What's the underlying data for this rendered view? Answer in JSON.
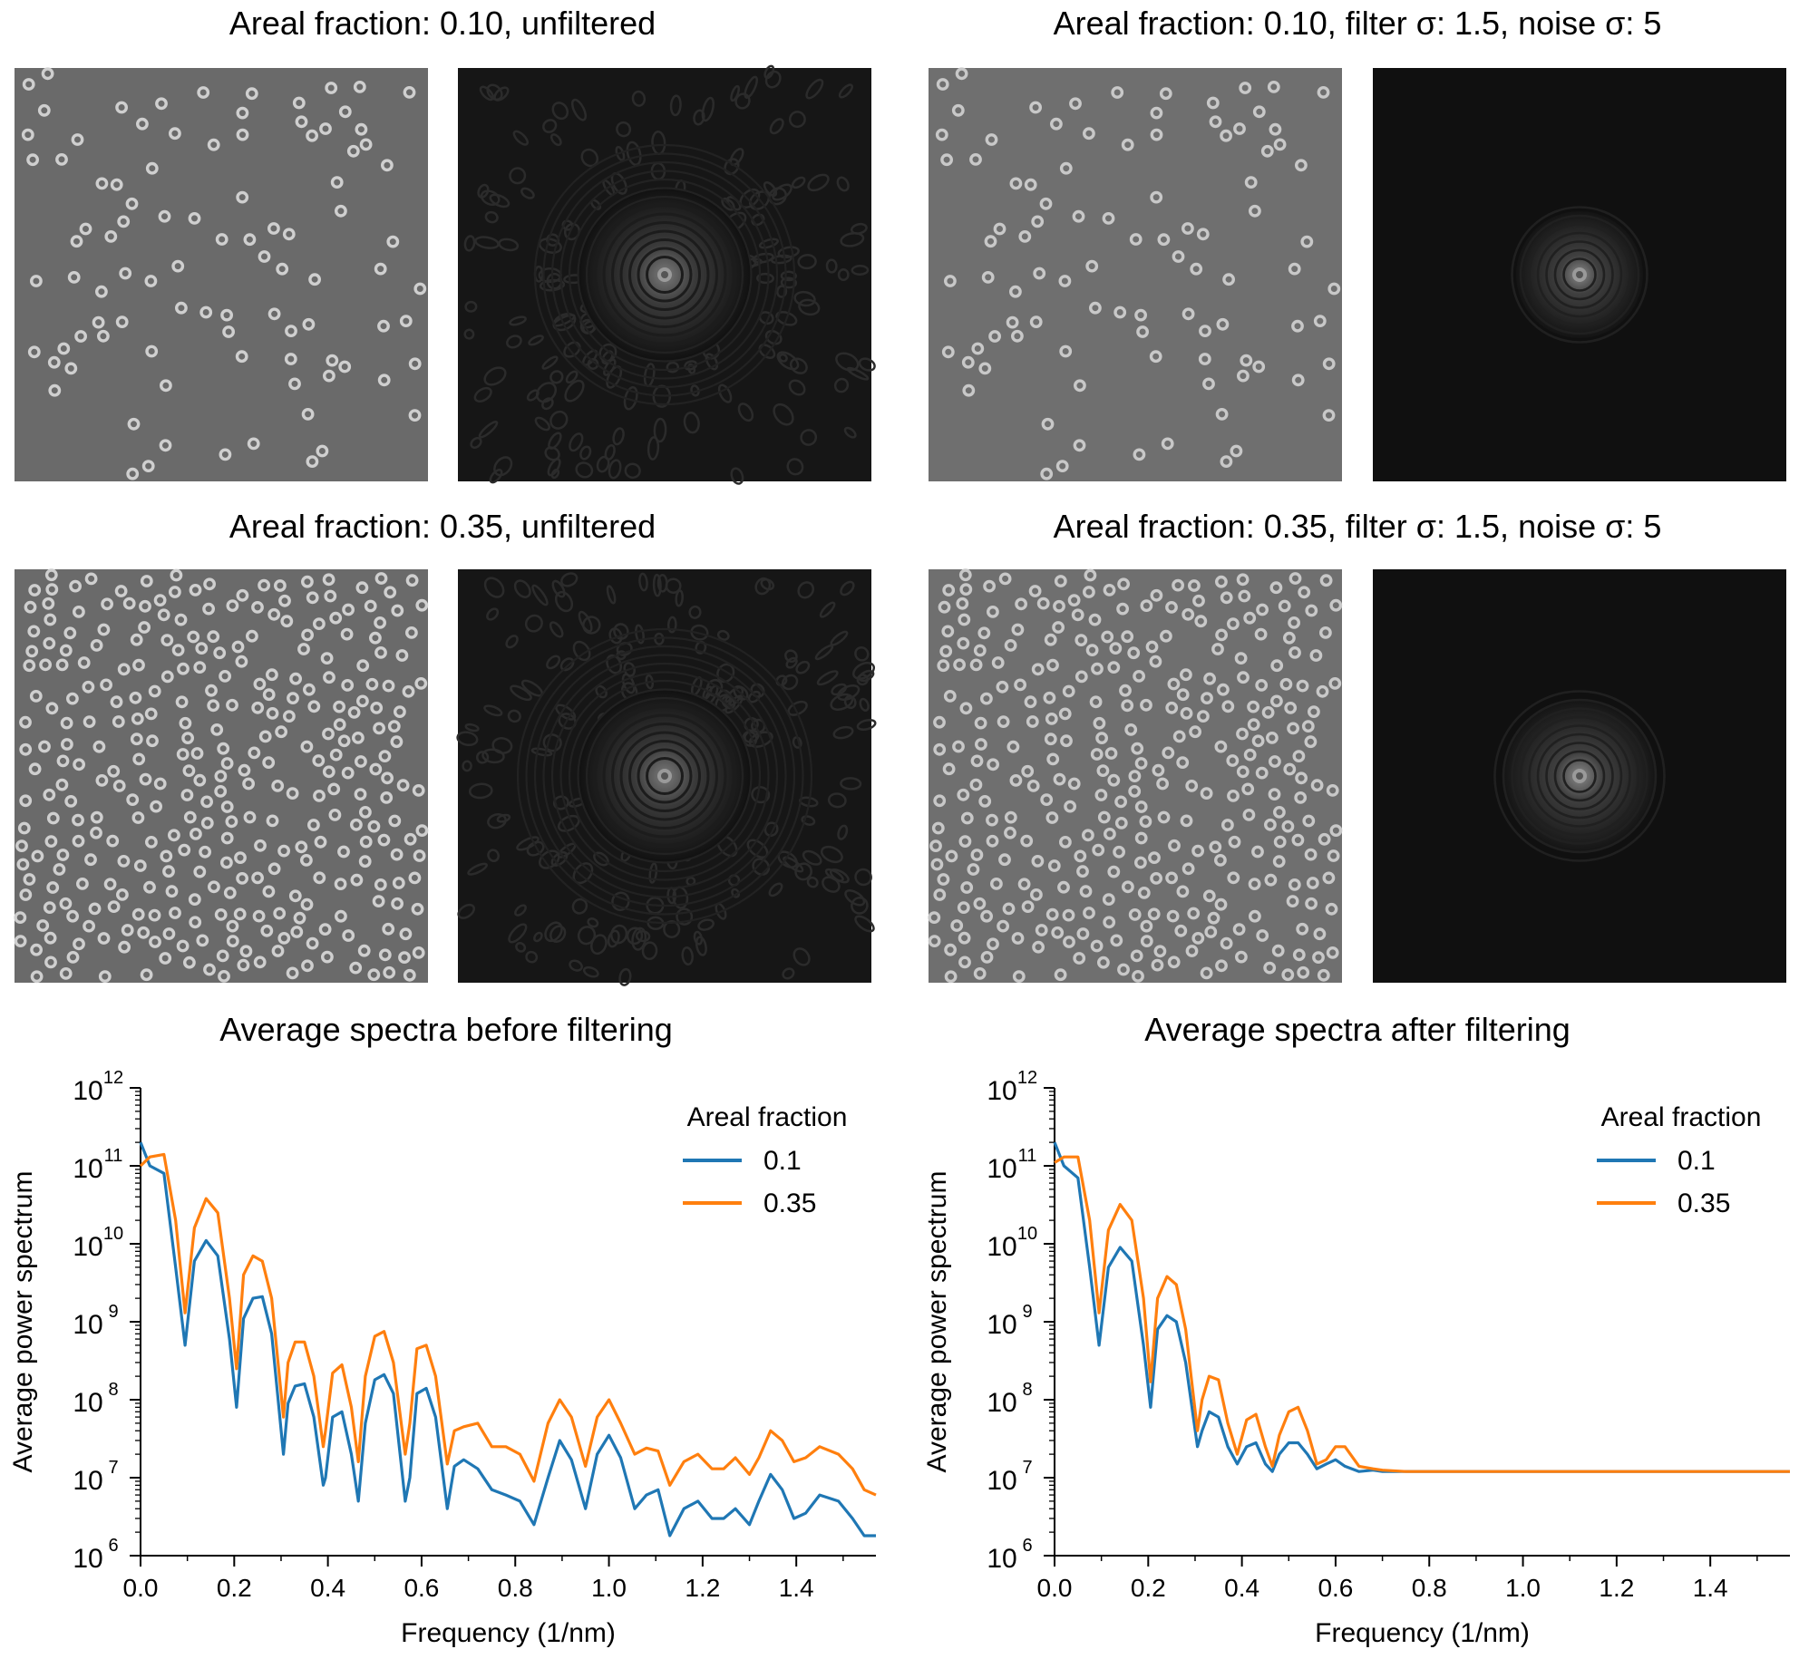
{
  "figure": {
    "panels": [
      {
        "title": "Areal fraction: 0.10, unfiltered",
        "areal_fraction": 0.1,
        "filtered": false,
        "n_particles": 95
      },
      {
        "title": "Areal fraction: 0.10, filter σ: 1.5, noise σ: 5",
        "areal_fraction": 0.1,
        "filtered": true,
        "n_particles": 95
      },
      {
        "title": "Areal fraction: 0.35, unfiltered",
        "areal_fraction": 0.35,
        "filtered": false,
        "n_particles": 330
      },
      {
        "title": "Areal fraction: 0.35, filter σ: 1.5, noise σ: 5",
        "areal_fraction": 0.35,
        "filtered": true,
        "n_particles": 330
      }
    ]
  },
  "chart_data": [
    {
      "type": "line",
      "title": "Average spectra before filtering",
      "xlabel": "Frequency (1/nm)",
      "ylabel": "Average power spectrum",
      "xlim": [
        0,
        1.57
      ],
      "ylim": [
        1000000.0,
        1000000000000.0
      ],
      "yscale": "log",
      "xticks": [
        "0.0",
        "0.2",
        "0.4",
        "0.6",
        "0.8",
        "1.0",
        "1.2",
        "1.4"
      ],
      "yticks": [
        "10^6",
        "10^7",
        "10^8",
        "10^9",
        "10^10",
        "10^11",
        "10^12"
      ],
      "legend": {
        "title": "Areal fraction",
        "position": "upper right"
      },
      "x": [
        0.0,
        0.02,
        0.05,
        0.075,
        0.095,
        0.115,
        0.14,
        0.165,
        0.19,
        0.205,
        0.22,
        0.24,
        0.26,
        0.28,
        0.305,
        0.315,
        0.33,
        0.35,
        0.37,
        0.39,
        0.395,
        0.41,
        0.43,
        0.45,
        0.465,
        0.48,
        0.5,
        0.52,
        0.54,
        0.565,
        0.575,
        0.59,
        0.61,
        0.63,
        0.655,
        0.67,
        0.69,
        0.72,
        0.75,
        0.78,
        0.81,
        0.84,
        0.87,
        0.895,
        0.92,
        0.95,
        0.975,
        1.0,
        1.025,
        1.055,
        1.08,
        1.105,
        1.13,
        1.16,
        1.19,
        1.22,
        1.245,
        1.27,
        1.3,
        1.32,
        1.345,
        1.37,
        1.395,
        1.42,
        1.45,
        1.49,
        1.52,
        1.545,
        1.57
      ],
      "series": [
        {
          "name": "0.1",
          "color": "#1f77b4",
          "y": [
            200000000000.0,
            100000000000.0,
            80000000000.0,
            5000000000.0,
            500000000.0,
            6000000000.0,
            11000000000.0,
            7000000000.0,
            600000000.0,
            80000000.0,
            1100000000.0,
            2000000000.0,
            2100000000.0,
            700000000.0,
            20000000.0,
            90000000.0,
            150000000.0,
            160000000.0,
            60000000.0,
            8000000.0,
            10000000.0,
            60000000.0,
            70000000.0,
            20000000.0,
            5000000.0,
            50000000.0,
            180000000.0,
            210000000.0,
            120000000.0,
            5000000.0,
            10000000.0,
            120000000.0,
            140000000.0,
            60000000.0,
            4000000.0,
            14000000.0,
            17000000.0,
            13000000.0,
            7000000.0,
            6000000.0,
            5000000.0,
            2500000.0,
            10000000.0,
            30000000.0,
            17000000.0,
            4000000.0,
            20000000.0,
            35000000.0,
            18000000.0,
            4000000.0,
            6000000.0,
            7000000.0,
            1800000.0,
            4000000.0,
            5000000.0,
            3000000.0,
            3000000.0,
            4000000.0,
            2500000.0,
            5000000.0,
            11000000.0,
            7000000.0,
            3000000.0,
            3500000.0,
            6000000.0,
            5000000.0,
            3000000.0,
            1800000.0,
            1800000.0
          ]
        },
        {
          "name": "0.35",
          "color": "#ff7f0e",
          "y": [
            100000000000.0,
            130000000000.0,
            140000000000.0,
            20000000000.0,
            1300000000.0,
            16000000000.0,
            38000000000.0,
            25000000000.0,
            2000000000.0,
            250000000.0,
            4000000000.0,
            7000000000.0,
            6000000000.0,
            2000000000.0,
            60000000.0,
            300000000.0,
            550000000.0,
            550000000.0,
            200000000.0,
            25000000.0,
            40000000.0,
            220000000.0,
            280000000.0,
            80000000.0,
            16000000.0,
            200000000.0,
            650000000.0,
            750000000.0,
            300000000.0,
            20000000.0,
            50000000.0,
            450000000.0,
            500000000.0,
            200000000.0,
            15000000.0,
            40000000.0,
            45000000.0,
            50000000.0,
            25000000.0,
            25000000.0,
            20000000.0,
            9000000.0,
            50000000.0,
            100000000.0,
            60000000.0,
            14000000.0,
            60000000.0,
            100000000.0,
            50000000.0,
            20000000.0,
            24000000.0,
            22000000.0,
            8000000.0,
            16000000.0,
            20000000.0,
            13000000.0,
            13000000.0,
            18000000.0,
            11000000.0,
            18000000.0,
            40000000.0,
            30000000.0,
            16000000.0,
            18000000.0,
            25000000.0,
            20000000.0,
            13000000.0,
            7000000.0,
            6000000.0
          ]
        }
      ]
    },
    {
      "type": "line",
      "title": "Average spectra after filtering",
      "xlabel": "Frequency (1/nm)",
      "ylabel": "Average power spectrum",
      "xlim": [
        0,
        1.57
      ],
      "ylim": [
        1000000.0,
        1000000000000.0
      ],
      "yscale": "log",
      "xticks": [
        "0.0",
        "0.2",
        "0.4",
        "0.6",
        "0.8",
        "1.0",
        "1.2",
        "1.4"
      ],
      "yticks": [
        "10^6",
        "10^7",
        "10^8",
        "10^9",
        "10^10",
        "10^11",
        "10^12"
      ],
      "legend": {
        "title": "Areal fraction",
        "position": "upper right"
      },
      "x": [
        0.0,
        0.02,
        0.05,
        0.075,
        0.095,
        0.115,
        0.14,
        0.165,
        0.19,
        0.205,
        0.22,
        0.24,
        0.26,
        0.28,
        0.305,
        0.315,
        0.33,
        0.35,
        0.37,
        0.39,
        0.41,
        0.43,
        0.45,
        0.465,
        0.48,
        0.5,
        0.52,
        0.54,
        0.56,
        0.58,
        0.6,
        0.62,
        0.65,
        0.68,
        0.7,
        0.75,
        0.8,
        0.9,
        1.0,
        1.1,
        1.2,
        1.3,
        1.4,
        1.5,
        1.57
      ],
      "series": [
        {
          "name": "0.1",
          "color": "#1f77b4",
          "y": [
            200000000000.0,
            100000000000.0,
            70000000000.0,
            5000000000.0,
            500000000.0,
            5000000000.0,
            9000000000.0,
            6000000000.0,
            500000000.0,
            80000000.0,
            800000000.0,
            1200000000.0,
            1000000000.0,
            300000000.0,
            25000000.0,
            40000000.0,
            70000000.0,
            60000000.0,
            25000000.0,
            15000000.0,
            25000000.0,
            28000000.0,
            15000000.0,
            12000000.0,
            20000000.0,
            28000000.0,
            28000000.0,
            20000000.0,
            13000000.0,
            15000000.0,
            17000000.0,
            14000000.0,
            12000000.0,
            12500000.0,
            12000000.0,
            12000000.0,
            12000000.0,
            12000000.0,
            12000000.0,
            12000000.0,
            12000000.0,
            12000000.0,
            12000000.0,
            12000000.0,
            12000000.0
          ]
        },
        {
          "name": "0.35",
          "color": "#ff7f0e",
          "y": [
            110000000000.0,
            130000000000.0,
            130000000000.0,
            20000000000.0,
            1300000000.0,
            15000000000.0,
            32000000000.0,
            20000000000.0,
            2000000000.0,
            170000000.0,
            2000000000.0,
            3800000000.0,
            3000000000.0,
            800000000.0,
            40000000.0,
            100000000.0,
            200000000.0,
            180000000.0,
            50000000.0,
            20000000.0,
            55000000.0,
            65000000.0,
            25000000.0,
            14000000.0,
            35000000.0,
            70000000.0,
            80000000.0,
            40000000.0,
            15000000.0,
            17000000.0,
            25000000.0,
            25000000.0,
            14000000.0,
            13000000.0,
            12500000.0,
            12000000.0,
            12000000.0,
            12000000.0,
            12000000.0,
            12000000.0,
            12000000.0,
            12000000.0,
            12000000.0,
            12000000.0,
            12000000.0
          ]
        }
      ]
    }
  ]
}
